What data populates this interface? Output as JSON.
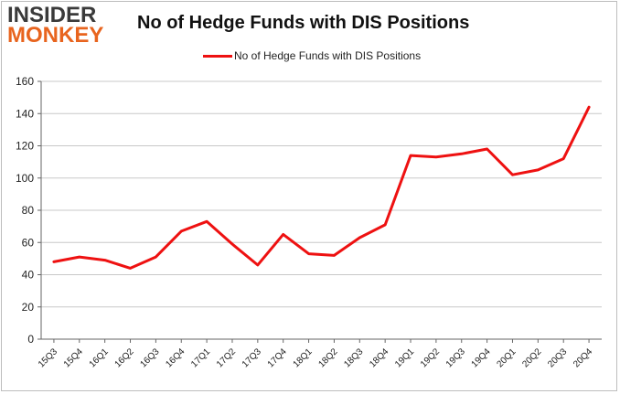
{
  "logo": {
    "line1": "INSIDER",
    "line2": "MONKEY"
  },
  "chart_data": {
    "type": "line",
    "title": "No of Hedge Funds with DIS Positions",
    "xlabel": "",
    "ylabel": "",
    "categories": [
      "15Q3",
      "15Q4",
      "16Q1",
      "16Q2",
      "16Q3",
      "16Q4",
      "17Q1",
      "17Q2",
      "17Q3",
      "17Q4",
      "18Q1",
      "18Q2",
      "18Q3",
      "18Q4",
      "19Q1",
      "19Q2",
      "19Q3",
      "19Q4",
      "20Q1",
      "20Q2",
      "20Q3",
      "20Q4"
    ],
    "series": [
      {
        "name": "No of Hedge Funds with DIS Positions",
        "color": "#ee1111",
        "values": [
          48,
          51,
          49,
          44,
          51,
          67,
          73,
          59,
          46,
          65,
          53,
          52,
          63,
          71,
          114,
          113,
          115,
          118,
          102,
          105,
          112,
          144
        ]
      }
    ],
    "ylim": [
      0,
      160
    ],
    "yticks": [
      0,
      20,
      40,
      60,
      80,
      100,
      120,
      140,
      160
    ],
    "grid": true,
    "legend": "top-center"
  }
}
